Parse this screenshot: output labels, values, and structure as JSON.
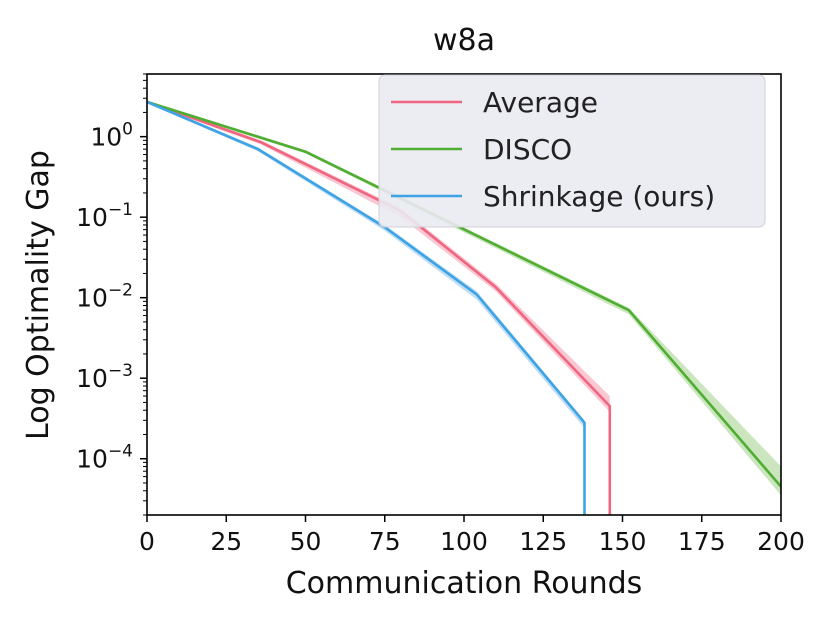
{
  "chart_data": {
    "type": "line",
    "title": "w8a",
    "xlabel": "Communication Rounds",
    "ylabel": "Log Optimality Gap",
    "xscale": "linear",
    "yscale": "log",
    "xlim": [
      0,
      200
    ],
    "ylim": [
      2e-05,
      6
    ],
    "grid": false,
    "legend_position": "upper right",
    "x_ticks": [
      0,
      25,
      50,
      75,
      100,
      125,
      150,
      175,
      200
    ],
    "y_ticks": [
      {
        "value": 1,
        "base": "10",
        "exp": "0"
      },
      {
        "value": 0.1,
        "base": "10",
        "exp": "−1"
      },
      {
        "value": 0.01,
        "base": "10",
        "exp": "−2"
      },
      {
        "value": 0.001,
        "base": "10",
        "exp": "−3"
      },
      {
        "value": 0.0001,
        "base": "10",
        "exp": "−4"
      }
    ],
    "series": [
      {
        "name": "Average",
        "color": "#f0657f",
        "band_color": "#f7b6c3",
        "x": [
          0,
          36,
          80,
          110,
          146,
          146
        ],
        "y": [
          2.7,
          0.85,
          0.12,
          0.0135,
          0.00045,
          2e-05
        ],
        "band_lower": [
          2.6,
          0.8,
          0.1,
          0.012,
          0.00038,
          2e-05
        ],
        "band_upper": [
          2.8,
          0.9,
          0.13,
          0.015,
          0.0006,
          2e-05
        ]
      },
      {
        "name": "DISCO",
        "color": "#4fae32",
        "band_color": "#b9dea8",
        "x": [
          0,
          50,
          152,
          200
        ],
        "y": [
          2.7,
          0.65,
          0.007,
          4.5e-05
        ],
        "band_lower": [
          2.6,
          0.62,
          0.0062,
          3.5e-05
        ],
        "band_upper": [
          2.8,
          0.68,
          0.0075,
          8e-05
        ]
      },
      {
        "name": "Shrinkage (ours)",
        "color": "#3da3e4",
        "band_color": "#a9d2ef",
        "x": [
          0,
          35,
          75,
          104,
          138,
          138
        ],
        "y": [
          2.7,
          0.7,
          0.075,
          0.011,
          0.00028,
          2e-05
        ],
        "band_lower": [
          2.6,
          0.66,
          0.068,
          0.0095,
          0.00024,
          2e-05
        ],
        "band_upper": [
          2.8,
          0.74,
          0.08,
          0.012,
          0.0003,
          2e-05
        ]
      }
    ]
  }
}
